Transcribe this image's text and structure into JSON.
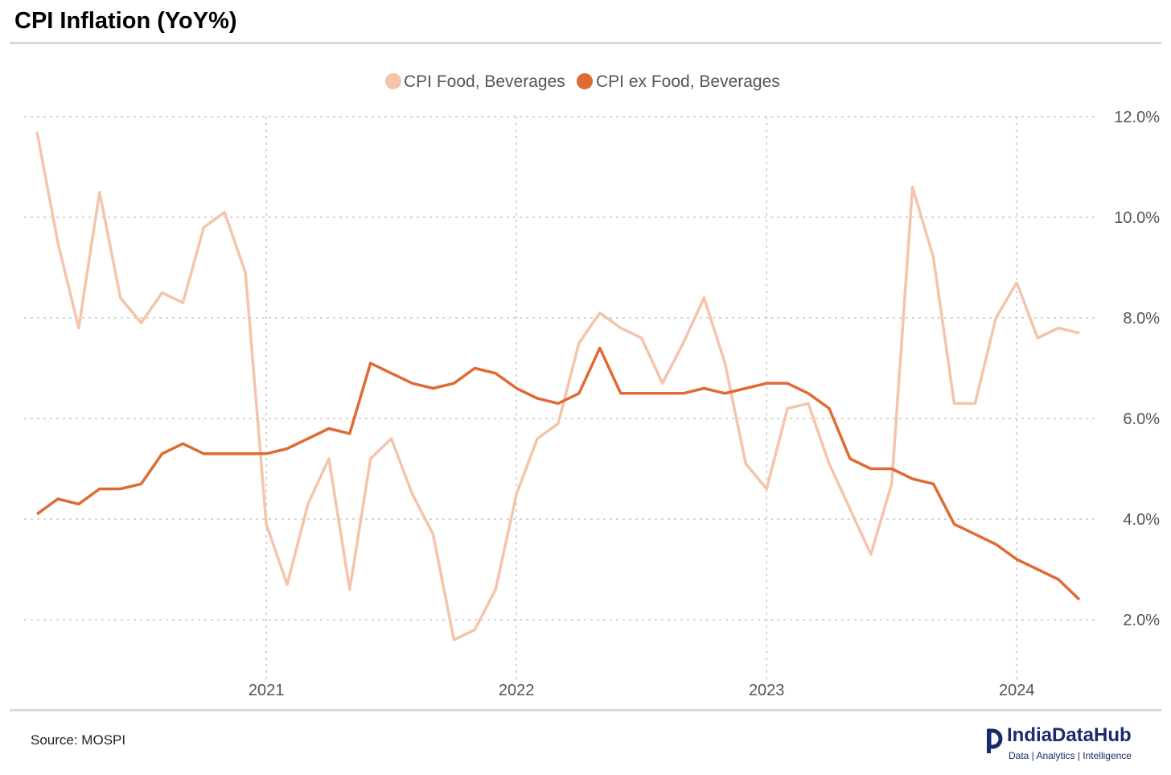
{
  "title": "CPI Inflation (YoY%)",
  "source": "Source: MOSPI",
  "brand": {
    "name": "IndiaDataHub",
    "tagline": "Data | Analytics | Intelligence",
    "logo_icon": "india-data-hub-logo-icon"
  },
  "chart_data": {
    "type": "line",
    "title": "CPI Inflation (YoY%)",
    "xlabel": "",
    "ylabel": "",
    "x_tick_labels": [
      "2021",
      "2022",
      "2023",
      "2024"
    ],
    "y_tick_labels": [
      "2.0%",
      "4.0%",
      "6.0%",
      "8.0%",
      "10.0%",
      "12.0%"
    ],
    "ylim": [
      1.0,
      12.0
    ],
    "y_ticks": [
      2,
      4,
      6,
      8,
      10,
      12
    ],
    "x_start": "2020-02",
    "x_end": "2024-04",
    "x_ticks": [
      "2021-01",
      "2022-01",
      "2023-01",
      "2024-01"
    ],
    "grid": true,
    "legend_position": "top-center",
    "x": [
      "2020-02",
      "2020-03",
      "2020-04",
      "2020-05",
      "2020-06",
      "2020-07",
      "2020-08",
      "2020-09",
      "2020-10",
      "2020-11",
      "2020-12",
      "2021-01",
      "2021-02",
      "2021-03",
      "2021-04",
      "2021-05",
      "2021-06",
      "2021-07",
      "2021-08",
      "2021-09",
      "2021-10",
      "2021-11",
      "2021-12",
      "2022-01",
      "2022-02",
      "2022-03",
      "2022-04",
      "2022-05",
      "2022-06",
      "2022-07",
      "2022-08",
      "2022-09",
      "2022-10",
      "2022-11",
      "2022-12",
      "2023-01",
      "2023-02",
      "2023-03",
      "2023-04",
      "2023-05",
      "2023-06",
      "2023-07",
      "2023-08",
      "2023-09",
      "2023-10",
      "2023-11",
      "2023-12",
      "2024-01",
      "2024-02",
      "2024-03",
      "2024-04"
    ],
    "series": [
      {
        "name": "CPI Food, Beverages",
        "color": "#f4c4ab",
        "values": [
          11.7,
          9.5,
          7.8,
          10.5,
          8.4,
          7.9,
          8.5,
          8.3,
          9.8,
          10.1,
          8.9,
          3.9,
          2.7,
          4.3,
          5.2,
          2.6,
          5.2,
          5.6,
          4.5,
          3.7,
          1.6,
          1.8,
          2.6,
          4.5,
          5.6,
          5.9,
          7.5,
          8.1,
          7.8,
          7.6,
          6.7,
          7.5,
          8.4,
          7.1,
          5.1,
          4.6,
          6.2,
          6.3,
          5.1,
          4.2,
          3.3,
          4.7,
          10.6,
          9.2,
          6.3,
          6.3,
          8.0,
          8.7,
          7.6,
          7.8,
          7.7
        ]
      },
      {
        "name": "CPI ex Food, Beverages",
        "color": "#e06a34",
        "values": [
          4.1,
          4.4,
          4.3,
          4.6,
          4.6,
          4.7,
          5.3,
          5.5,
          5.3,
          5.3,
          5.3,
          5.3,
          5.4,
          5.6,
          5.8,
          5.7,
          7.1,
          6.9,
          6.7,
          6.6,
          6.7,
          7.0,
          6.9,
          6.6,
          6.4,
          6.3,
          6.5,
          7.4,
          6.5,
          6.5,
          6.5,
          6.5,
          6.6,
          6.5,
          6.6,
          6.7,
          6.7,
          6.5,
          6.2,
          5.2,
          5.0,
          5.0,
          4.8,
          4.7,
          3.9,
          3.7,
          3.5,
          3.2,
          3.0,
          2.8,
          2.4
        ]
      }
    ]
  }
}
